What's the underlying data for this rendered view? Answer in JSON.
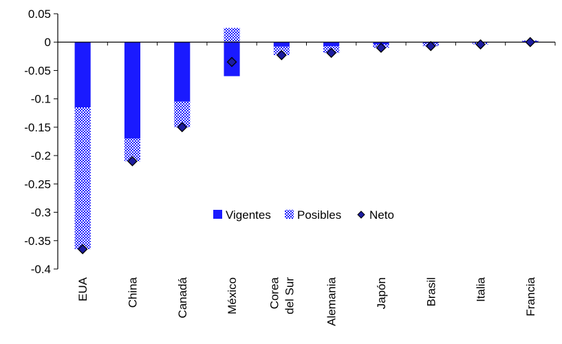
{
  "chart_data": {
    "type": "bar",
    "title": "",
    "xlabel": "",
    "ylabel": "",
    "ylim": [
      -0.4,
      0.05
    ],
    "yticks": [
      0.05,
      0,
      -0.05,
      -0.1,
      -0.15,
      -0.2,
      -0.25,
      -0.3,
      -0.35,
      -0.4
    ],
    "ytick_labels": [
      "0.05",
      "0",
      "-0.05",
      "-0.1",
      "-0.15",
      "-0.2",
      "-0.25",
      "-0.3",
      "-0.35",
      "-0.4"
    ],
    "categories": [
      "EUA",
      "China",
      "Canadá",
      "México",
      "Corea del Sur",
      "Alemania",
      "Japón",
      "Brasil",
      "Italia",
      "Francia"
    ],
    "category_lines": [
      [
        "EUA"
      ],
      [
        "China"
      ],
      [
        "Canadá"
      ],
      [
        "México"
      ],
      [
        "Corea",
        "del Sur"
      ],
      [
        "Alemania"
      ],
      [
        "Japón"
      ],
      [
        "Brasil"
      ],
      [
        "Italia"
      ],
      [
        "Francia"
      ]
    ],
    "series": [
      {
        "name": "Vigentes",
        "type": "bar",
        "color": "#1a1aff",
        "values": [
          -0.115,
          -0.17,
          -0.105,
          -0.06,
          -0.008,
          -0.007,
          -0.004,
          -0.002,
          -0.001,
          0.002
        ]
      },
      {
        "name": "Posibles",
        "type": "bar-stacked-pattern",
        "color": "#1a1aff",
        "values": [
          -0.25,
          -0.04,
          -0.045,
          0.025,
          -0.015,
          -0.012,
          -0.006,
          -0.005,
          -0.003,
          0.001
        ]
      },
      {
        "name": "Neto",
        "type": "marker-diamond",
        "color": "#1c1ca0",
        "values": [
          -0.365,
          -0.21,
          -0.15,
          -0.035,
          -0.023,
          -0.019,
          -0.01,
          -0.007,
          -0.004,
          0.0
        ]
      }
    ],
    "legend_position": "center-right",
    "grid": false
  }
}
